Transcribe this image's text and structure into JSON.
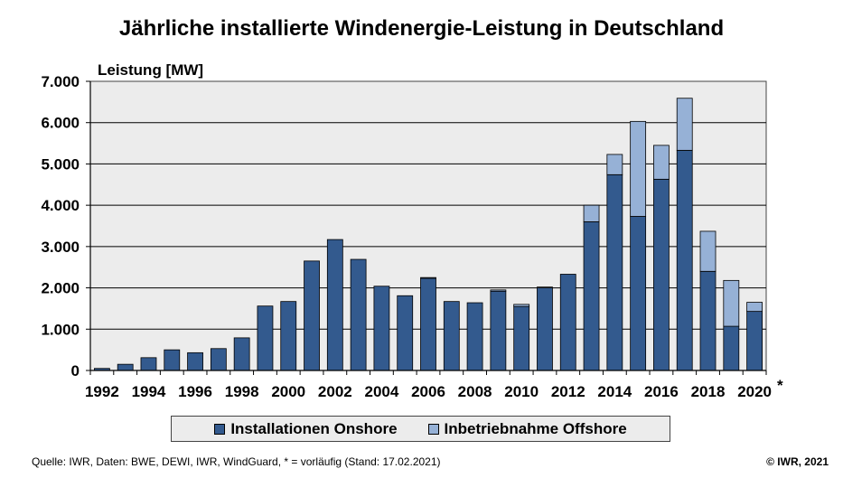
{
  "chart_data": {
    "type": "bar",
    "stacked": true,
    "title": "Jährliche installierte Windenergie-Leistung in Deutschland",
    "ylabel": "Leistung [MW]",
    "xlabel": "",
    "ylim": [
      0,
      7000
    ],
    "yticks": [
      0,
      1000,
      2000,
      3000,
      4000,
      5000,
      6000,
      7000
    ],
    "ytick_labels": [
      "0",
      "1.000",
      "2.000",
      "3.000",
      "4.000",
      "5.000",
      "6.000",
      "7.000"
    ],
    "grid": true,
    "categories": [
      "1992",
      "1993",
      "1994",
      "1995",
      "1996",
      "1997",
      "1998",
      "1999",
      "2000",
      "2001",
      "2002",
      "2003",
      "2004",
      "2005",
      "2006",
      "2007",
      "2008",
      "2009",
      "2010",
      "2011",
      "2012",
      "2013",
      "2014",
      "2015",
      "2016",
      "2017",
      "2018",
      "2019",
      "2020"
    ],
    "xtick_labels": [
      "1992",
      "1994",
      "1996",
      "1998",
      "2000",
      "2002",
      "2004",
      "2006",
      "2008",
      "2010",
      "2012",
      "2014",
      "2016",
      "2018",
      "2020"
    ],
    "x_suffix_mark": "*",
    "series": [
      {
        "name": "Installationen Onshore",
        "color": "#335a8e",
        "values": [
          50,
          150,
          310,
          500,
          430,
          530,
          790,
          1560,
          1670,
          2650,
          3170,
          2690,
          2040,
          1810,
          2230,
          1670,
          1640,
          1920,
          1550,
          2000,
          2330,
          3600,
          4740,
          3730,
          4630,
          5330,
          2400,
          1070,
          1430
        ]
      },
      {
        "name": "Inbetriebnahme Offshore",
        "color": "#96b1d6",
        "values": [
          0,
          0,
          0,
          0,
          0,
          0,
          0,
          0,
          0,
          0,
          0,
          0,
          0,
          0,
          20,
          0,
          0,
          30,
          50,
          20,
          0,
          400,
          490,
          2300,
          820,
          1260,
          970,
          1110,
          220
        ]
      }
    ],
    "legend_position": "bottom"
  },
  "footer": {
    "source": "Quelle: IWR, Daten: BWE, DEWI, IWR, WindGuard, * = vorläufig (Stand: 17.02.2021)",
    "copyright": "© IWR, 2021"
  }
}
